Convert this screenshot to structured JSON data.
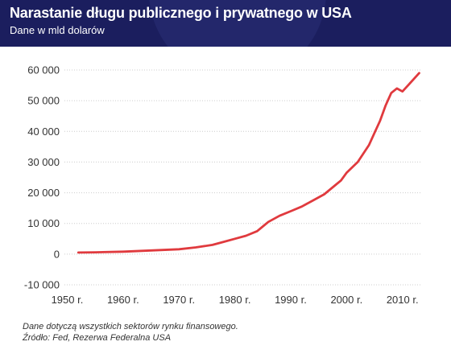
{
  "header": {
    "title": "Narastanie długu publicznego i prywatnego w USA",
    "subtitle": "Dane w mld dolarów"
  },
  "notes": {
    "line1": "Dane dotyczą wszystkich sektorów rynku finansowego.",
    "line2": "Źródło: Fed, Rezerwa Federalna USA"
  },
  "colors": {
    "header_bg": "#1b1e5e",
    "line": "#e03a3e",
    "grid": "#cccccc"
  },
  "chart_data": {
    "type": "line",
    "title": "Narastanie długu publicznego i prywatnego w USA",
    "subtitle": "Dane w mld dolarów",
    "xlabel": "",
    "ylabel": "",
    "xlim": [
      1949.5,
      2013.5
    ],
    "ylim": [
      -10000,
      60000
    ],
    "y_ticks": [
      60000,
      50000,
      40000,
      30000,
      20000,
      10000,
      0,
      -10000
    ],
    "y_tick_labels": [
      "60 000",
      "50 000",
      "40 000",
      "30 000",
      "20 000",
      "10 000",
      "0",
      "-10 000"
    ],
    "x_ticks": [
      1950,
      1960,
      1970,
      1980,
      1990,
      2000,
      2010
    ],
    "x_tick_labels": [
      "1950 r.",
      "1960 r.",
      "1970 r.",
      "1980 r.",
      "1990 r.",
      "2000 r.",
      "2010 r."
    ],
    "grid": "horizontal",
    "series": [
      {
        "x": [
          1952,
          1955,
          1960,
          1965,
          1970,
          1973,
          1976,
          1978,
          1980,
          1982,
          1984,
          1985,
          1986,
          1988,
          1990,
          1992,
          1994,
          1996,
          1998,
          1999,
          2000,
          2002,
          2004,
          2005,
          2006,
          2007,
          2008,
          2009,
          2010,
          2011,
          2012,
          2013
        ],
        "y": [
          500,
          600,
          800,
          1200,
          1600,
          2200,
          3000,
          4000,
          5000,
          6000,
          7500,
          9000,
          10500,
          12500,
          14000,
          15500,
          17500,
          19500,
          22500,
          24000,
          26500,
          30000,
          35500,
          39500,
          43500,
          48500,
          52500,
          54000,
          53000,
          55000,
          57000,
          59000
        ]
      }
    ]
  }
}
